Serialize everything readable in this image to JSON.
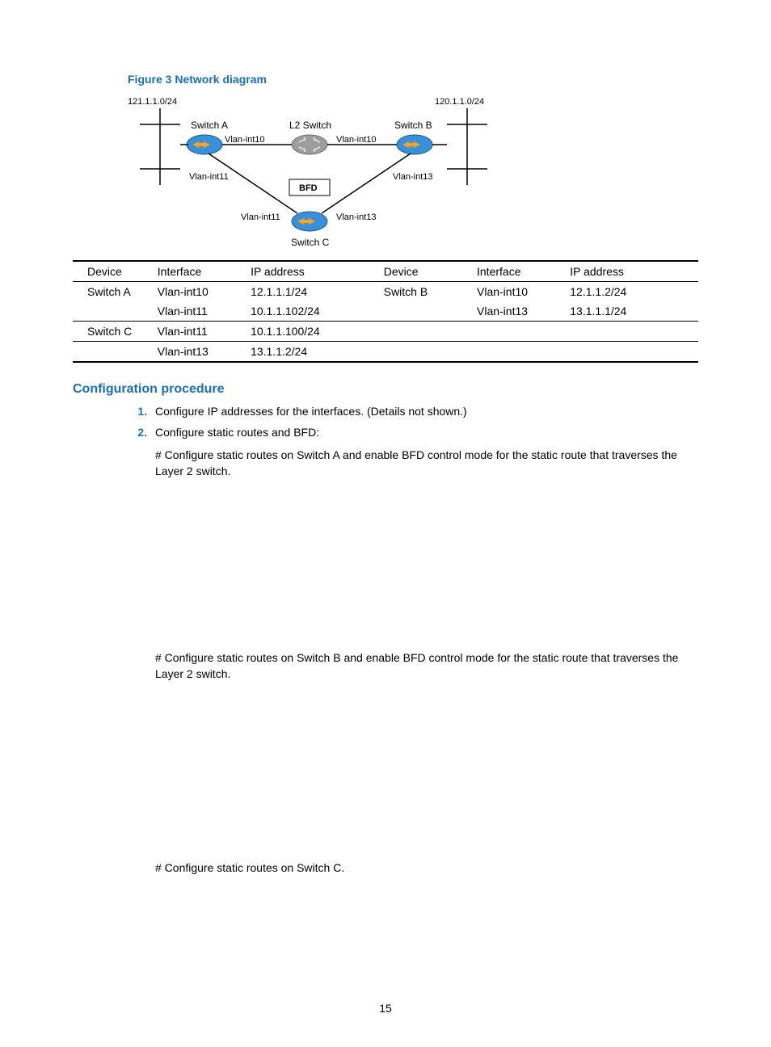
{
  "figure": {
    "caption": "Figure 3 Network diagram",
    "net_left": "121.1.1.0/24",
    "net_right": "120.1.1.0/24",
    "switch_a": "Switch A",
    "switch_b": "Switch B",
    "switch_c": "Switch C",
    "l2_switch": "L2 Switch",
    "bfd": "BFD",
    "vlan10": "Vlan-int10",
    "vlan11": "Vlan-int11",
    "vlan13": "Vlan-int13",
    "colors": {
      "switch_fill": "#3a8fd9",
      "switch_arrow": "#f5a623",
      "gray_switch": "#9d9d9d",
      "line": "#000000",
      "bfd_border": "#000000",
      "text": "#000000"
    }
  },
  "table": {
    "headers": [
      "Device",
      "Interface",
      "IP address",
      "Device",
      "Interface",
      "IP address"
    ],
    "rows": [
      {
        "cells": [
          "Switch A",
          "Vlan-int10",
          "12.1.1.1/24",
          "Switch B",
          "Vlan-int10",
          "12.1.1.2/24"
        ],
        "underline": false
      },
      {
        "cells": [
          "",
          "Vlan-int11",
          "10.1.1.102/24",
          "",
          "Vlan-int13",
          "13.1.1.1/24"
        ],
        "underline": true
      },
      {
        "cells": [
          "Switch C",
          "Vlan-int11",
          "10.1.1.100/24",
          "",
          "",
          ""
        ],
        "underline": true
      },
      {
        "cells": [
          "",
          "Vlan-int13",
          "13.1.1.2/24",
          "",
          "",
          ""
        ],
        "underline": false,
        "last": true
      }
    ]
  },
  "section_title": "Configuration procedure",
  "steps": {
    "s1": "Configure IP addresses for the interfaces. (Details not shown.)",
    "s2": "Configure static routes and BFD:",
    "s2a": "# Configure static routes on Switch A and enable BFD control mode for the static route that traverses the Layer 2 switch.",
    "s2b": "# Configure static routes on Switch B and enable BFD control mode for the static route that traverses the Layer 2 switch.",
    "s2c": "# Configure static routes on Switch C."
  },
  "page_number": "15"
}
